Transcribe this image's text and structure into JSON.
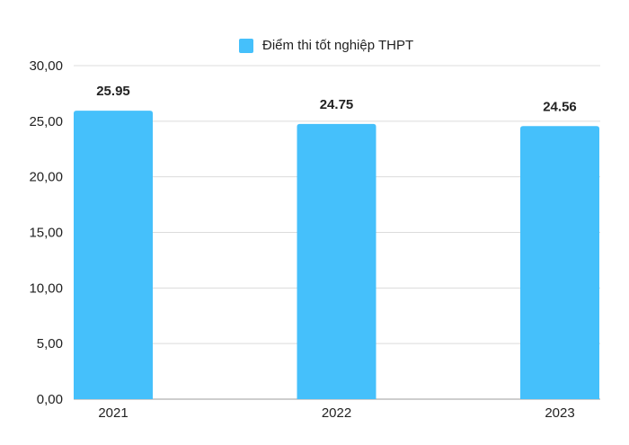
{
  "chart_data": {
    "type": "bar",
    "categories": [
      "2021",
      "2022",
      "2023"
    ],
    "series": [
      {
        "name": "Điểm thi tốt nghiệp THPT",
        "values": [
          25.95,
          24.75,
          24.56
        ]
      }
    ],
    "data_labels": [
      "25.95",
      "24.75",
      "24.56"
    ],
    "y_tick_labels": [
      "0,00",
      "5,00",
      "10,00",
      "15,00",
      "20,00",
      "25,00",
      "30,00"
    ],
    "y_ticks": [
      0,
      5,
      10,
      15,
      20,
      25,
      30
    ],
    "ylim": [
      0,
      30
    ],
    "title": "",
    "xlabel": "",
    "ylabel": "",
    "grid": true,
    "legend_position": "top"
  },
  "colors": {
    "bar": "#45c0fb",
    "grid": "#dcdcdc",
    "axis": "#b0b0b0",
    "text": "#222222"
  }
}
